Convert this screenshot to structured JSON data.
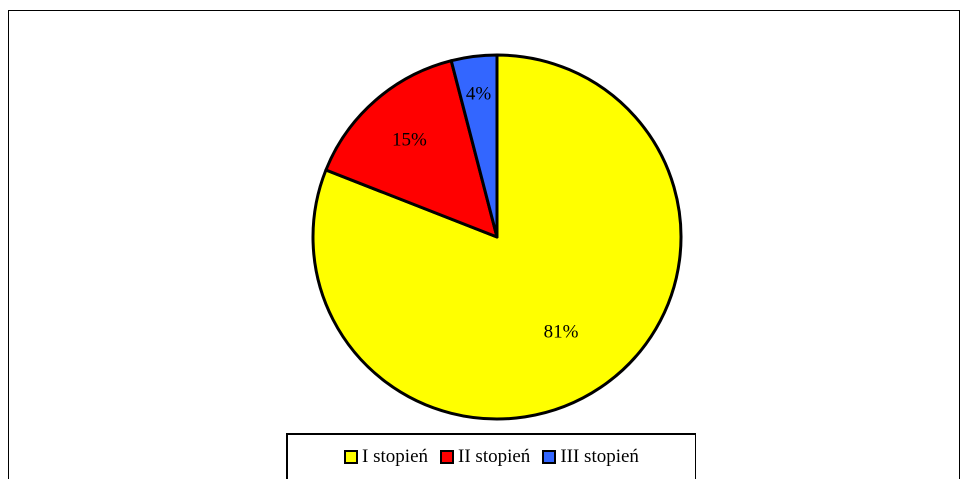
{
  "chart_data": {
    "type": "pie",
    "title": "",
    "legend_placement": "bottom",
    "slices": [
      {
        "name": "I stopień",
        "value": 81,
        "label": "81%",
        "color": "#FFFF00"
      },
      {
        "name": "II stopień",
        "value": 15,
        "label": "15%",
        "color": "#FF0000"
      },
      {
        "name": "III stopień",
        "value": 4,
        "label": "4%",
        "color": "#3366FF"
      }
    ]
  }
}
